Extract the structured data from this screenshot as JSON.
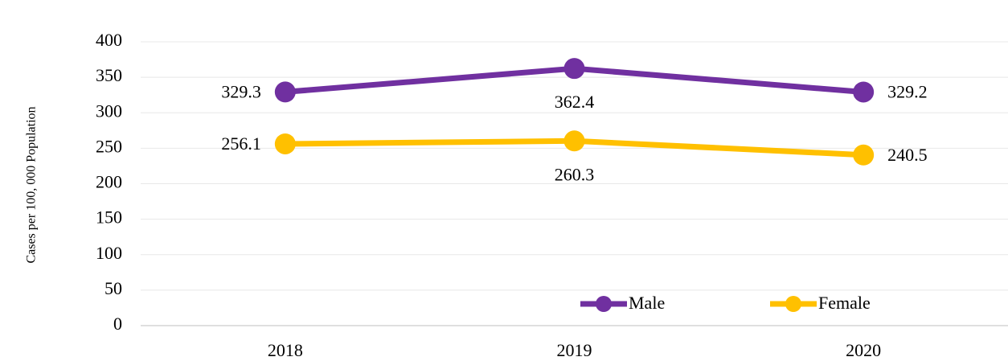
{
  "chart_data": {
    "type": "line",
    "y_axis_label": "Cases per 100, 000 Population",
    "categories": [
      "2018",
      "2019",
      "2020"
    ],
    "series": [
      {
        "name": "Male",
        "color": "#7030a0",
        "values": [
          329.3,
          362.4,
          329.2
        ]
      },
      {
        "name": "Female",
        "color": "#ffc000",
        "values": [
          256.1,
          260.3,
          240.5
        ]
      }
    ],
    "ylim": [
      0,
      400
    ],
    "yticks": [
      0,
      50,
      100,
      150,
      200,
      250,
      300,
      350,
      400
    ],
    "grid": true,
    "legend": "bottom"
  }
}
